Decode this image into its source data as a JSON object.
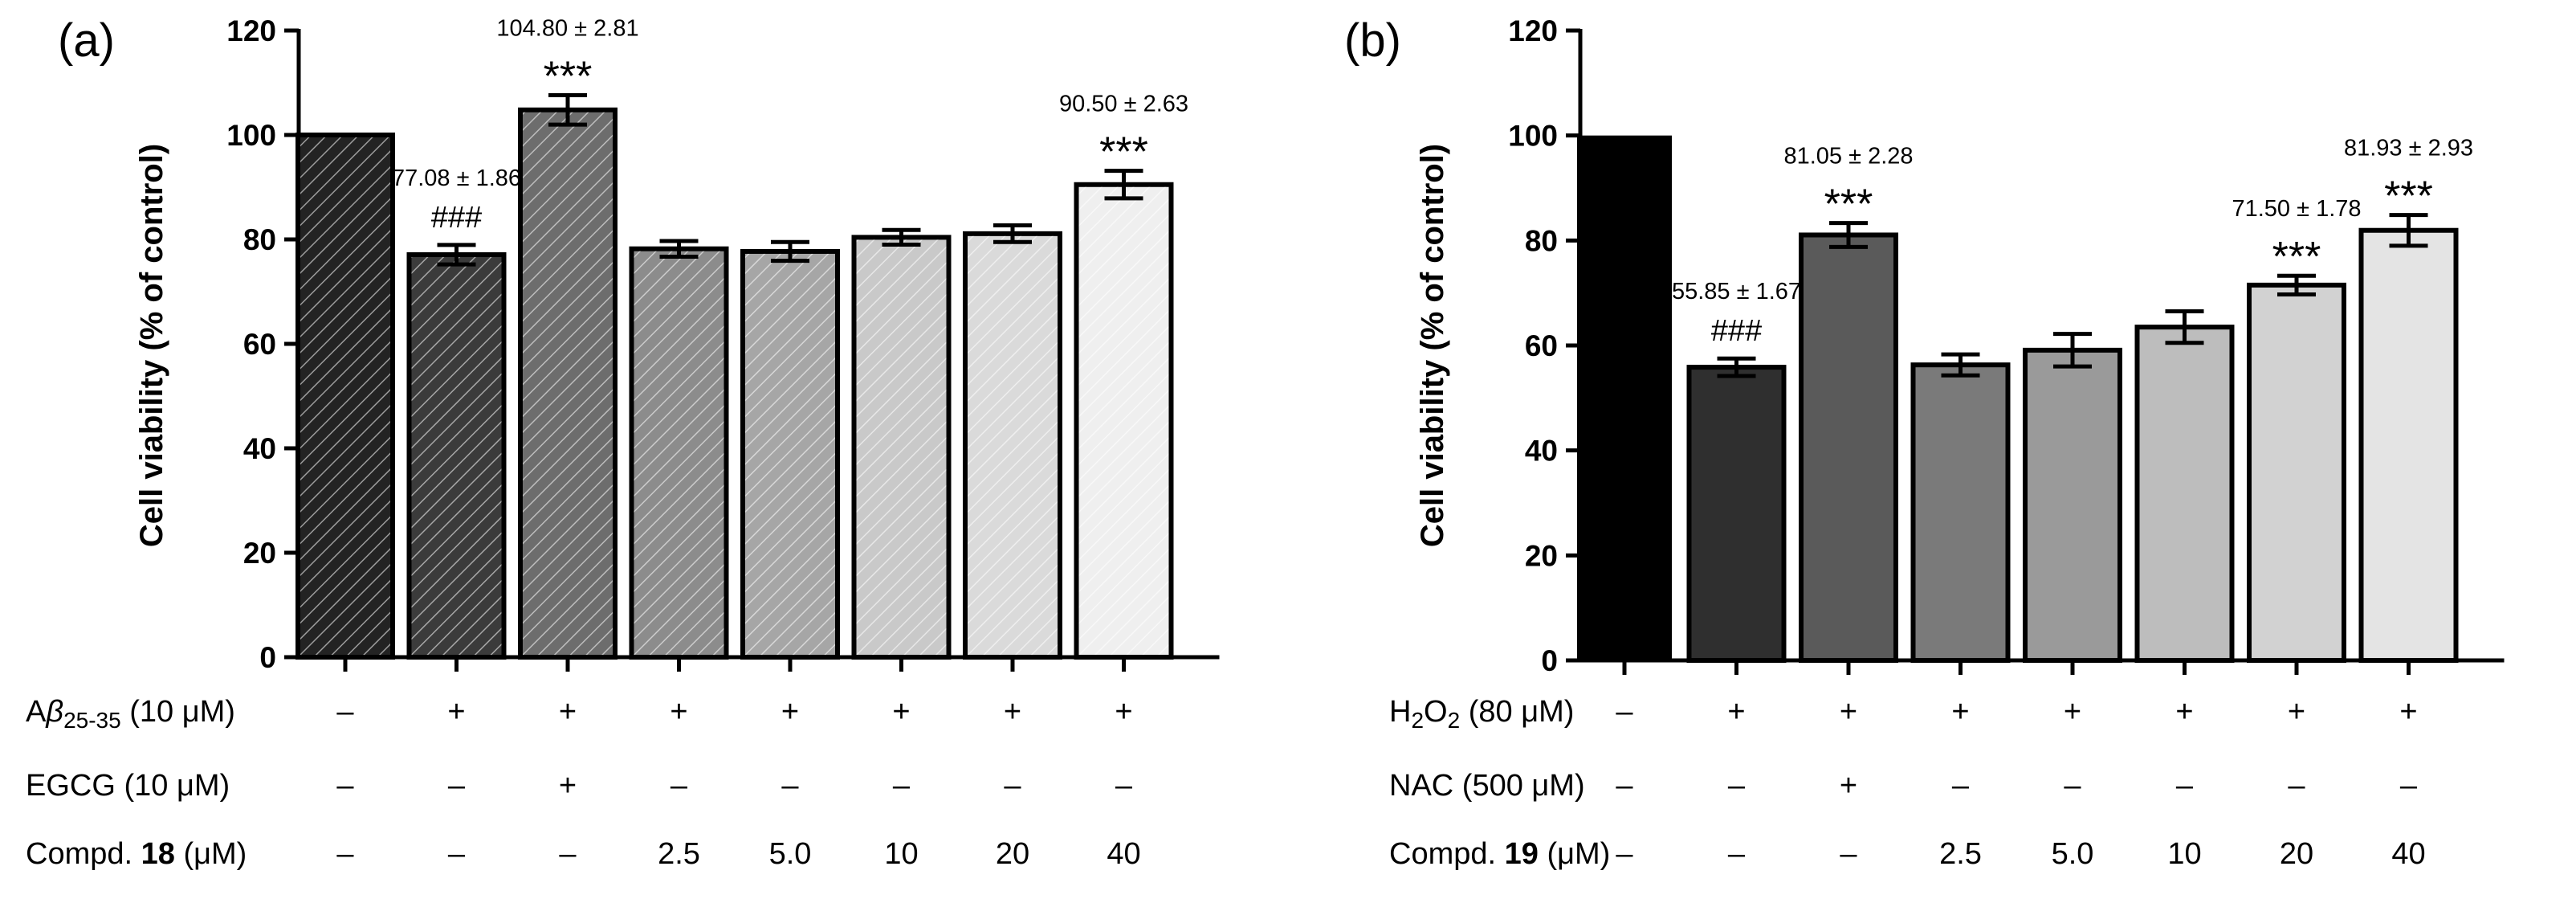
{
  "chart_data": [
    {
      "type": "bar",
      "panel_label": "(a)",
      "ylabel": "Cell viability (% of control)",
      "ylim": [
        0,
        120
      ],
      "yticks": [
        "0",
        "20",
        "40",
        "60",
        "80",
        "100",
        "120"
      ],
      "values": [
        100,
        77.08,
        104.8,
        78.2,
        77.7,
        80.4,
        81.1,
        90.5
      ],
      "errors": [
        0,
        1.86,
        2.81,
        1.5,
        1.8,
        1.4,
        1.6,
        2.63
      ],
      "bar_colors": [
        "#232323",
        "#3b3b3b",
        "#6d6d6d",
        "#8c8c8c",
        "#a6a6a6",
        "#c9c9c9",
        "#dadada",
        "#efefef"
      ],
      "hatched": true,
      "value_labels": [
        "",
        "77.08 ± 1.86",
        "104.80 ± 2.81",
        "",
        "",
        "",
        "",
        "90.50 ± 2.63"
      ],
      "sig_labels": [
        "",
        "###",
        "***",
        "",
        "",
        "",
        "",
        "***"
      ],
      "conditions": [
        {
          "label_prefix": "Aβ",
          "label_sub": "25-35",
          "label_suffix": " (10 μM)",
          "values": [
            "–",
            "+",
            "+",
            "+",
            "+",
            "+",
            "+",
            "+"
          ]
        },
        {
          "label_prefix": "EGCG (10 μM)",
          "label_sub": "",
          "label_suffix": "",
          "values": [
            "–",
            "–",
            "+",
            "–",
            "–",
            "–",
            "–",
            "–"
          ]
        },
        {
          "label_prefix": "Compd. ",
          "label_bold": "18",
          "label_suffix": " (μM)",
          "values": [
            "–",
            "–",
            "–",
            "2.5",
            "5.0",
            "10",
            "20",
            "40"
          ]
        }
      ]
    },
    {
      "type": "bar",
      "panel_label": "(b)",
      "ylabel": "Cell viability (% of control)",
      "ylim": [
        0,
        120
      ],
      "yticks": [
        "0",
        "20",
        "40",
        "60",
        "80",
        "100",
        "120"
      ],
      "values": [
        100,
        55.85,
        81.05,
        56.3,
        59.1,
        63.5,
        71.5,
        81.93
      ],
      "errors": [
        0,
        1.67,
        2.28,
        2.0,
        3.1,
        3.0,
        1.78,
        2.93
      ],
      "bar_colors": [
        "#000000",
        "#2f2f2f",
        "#5a5a5a",
        "#7a7a7a",
        "#9a9a9a",
        "#bdbdbd",
        "#d2d2d2",
        "#e4e4e4"
      ],
      "hatched": false,
      "value_labels": [
        "",
        "55.85 ± 1.67",
        "81.05 ± 2.28",
        "",
        "",
        "",
        "71.50 ± 1.78",
        "81.93 ± 2.93"
      ],
      "sig_labels": [
        "",
        "###",
        "***",
        "",
        "",
        "",
        "***",
        "***"
      ],
      "conditions": [
        {
          "label_prefix": "H",
          "label_sub": "2",
          "label_mid": "O",
          "label_sub2": "2",
          "label_suffix": " (80 μM)",
          "values": [
            "–",
            "+",
            "+",
            "+",
            "+",
            "+",
            "+",
            "+"
          ]
        },
        {
          "label_prefix": "NAC (500 μM)",
          "label_sub": "",
          "label_suffix": "",
          "values": [
            "–",
            "–",
            "+",
            "–",
            "–",
            "–",
            "–",
            "–"
          ]
        },
        {
          "label_prefix": "Compd. ",
          "label_bold": "19",
          "label_suffix": " (μM)",
          "values": [
            "–",
            "–",
            "–",
            "2.5",
            "5.0",
            "10",
            "20",
            "40"
          ]
        }
      ]
    }
  ]
}
